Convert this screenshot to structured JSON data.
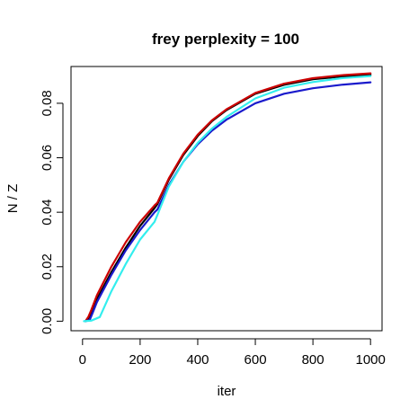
{
  "chart_data": {
    "type": "line",
    "title": "frey perplexity = 100",
    "xlabel": "iter",
    "ylabel": "N / Z",
    "xlim": [
      -40,
      1040
    ],
    "ylim": [
      -0.0035,
      0.0935
    ],
    "x_ticks": [
      0,
      200,
      400,
      600,
      800,
      1000
    ],
    "x_tick_labels": [
      "0",
      "200",
      "400",
      "600",
      "800",
      "1000"
    ],
    "y_ticks": [
      0.0,
      0.02,
      0.04,
      0.06,
      0.08
    ],
    "y_tick_labels": [
      "0.00",
      "0.02",
      "0.04",
      "0.06",
      "0.08"
    ],
    "grid": false,
    "legend": "none",
    "series": [
      {
        "color": "#000000",
        "x": [
          10,
          20,
          30,
          50,
          100,
          150,
          200,
          250,
          260,
          300,
          350,
          400,
          450,
          500,
          600,
          700,
          800,
          900,
          1000
        ],
        "y": [
          0.0,
          0.001,
          0.003,
          0.008,
          0.018,
          0.027,
          0.035,
          0.0415,
          0.043,
          0.052,
          0.061,
          0.068,
          0.0735,
          0.0775,
          0.0835,
          0.0868,
          0.0888,
          0.0898,
          0.0905
        ]
      },
      {
        "color": "#cc0000",
        "x": [
          10,
          20,
          30,
          50,
          100,
          150,
          200,
          250,
          260,
          300,
          350,
          400,
          450,
          500,
          600,
          700,
          800,
          900,
          1000
        ],
        "y": [
          0.0,
          0.0015,
          0.004,
          0.0095,
          0.02,
          0.029,
          0.0365,
          0.0425,
          0.0435,
          0.0525,
          0.0615,
          0.0685,
          0.0738,
          0.0778,
          0.0838,
          0.0872,
          0.0892,
          0.0903,
          0.091
        ]
      },
      {
        "color": "#1a1acc",
        "x": [
          10,
          25,
          35,
          50,
          100,
          150,
          200,
          250,
          260,
          300,
          350,
          400,
          450,
          500,
          600,
          700,
          800,
          900,
          1000
        ],
        "y": [
          0.0,
          0.0005,
          0.003,
          0.007,
          0.017,
          0.026,
          0.0335,
          0.04,
          0.041,
          0.05,
          0.0585,
          0.065,
          0.07,
          0.074,
          0.08,
          0.0835,
          0.0855,
          0.0868,
          0.0877
        ]
      },
      {
        "color": "#33eeee",
        "x": [
          5,
          30,
          60,
          100,
          150,
          200,
          250,
          260,
          300,
          350,
          400,
          450,
          500,
          600,
          700,
          800,
          900,
          1000
        ],
        "y": [
          0.0,
          0.0002,
          0.0015,
          0.011,
          0.021,
          0.03,
          0.0365,
          0.039,
          0.0495,
          0.0585,
          0.0655,
          0.0708,
          0.075,
          0.0818,
          0.0857,
          0.0878,
          0.0892,
          0.09
        ]
      }
    ]
  }
}
